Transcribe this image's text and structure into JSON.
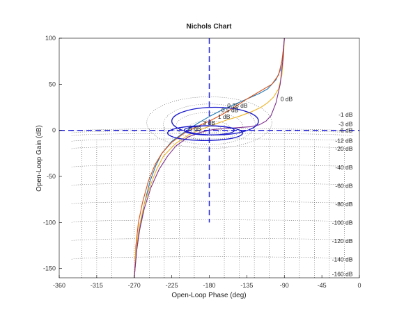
{
  "chart_data": {
    "type": "line",
    "title": "Nichols Chart",
    "xlabel": "Open-Loop Phase (deg)",
    "ylabel": "Open-Loop Gain (dB)",
    "xlim": [
      -360,
      0
    ],
    "ylim": [
      -160,
      100
    ],
    "xticks": [
      -360,
      -315,
      -270,
      -225,
      -180,
      -135,
      -90,
      -45,
      0
    ],
    "yticks": [
      -150,
      -100,
      -50,
      0,
      50,
      100
    ],
    "grid_labels": [
      {
        "text": "0.25 dB",
        "x": -134,
        "y": 27
      },
      {
        "text": "0.5 dB",
        "x": -145,
        "y": 22
      },
      {
        "text": "1 dB",
        "x": -155,
        "y": 15
      },
      {
        "text": "3 dB",
        "x": -173,
        "y": 8
      },
      {
        "text": "6 dB",
        "x": -190,
        "y": 2
      },
      {
        "text": "0 dB",
        "x": -80,
        "y": 34
      },
      {
        "text": "-1 dB",
        "x": -8,
        "y": 17
      },
      {
        "text": "-3 dB",
        "x": -8,
        "y": 7
      },
      {
        "text": "-6 dB",
        "x": -8,
        "y": 0
      },
      {
        "text": "-12 dB",
        "x": -8,
        "y": -11
      },
      {
        "text": "-20 dB",
        "x": -8,
        "y": -20
      },
      {
        "text": "-40 dB",
        "x": -8,
        "y": -40
      },
      {
        "text": "-60 dB",
        "x": -8,
        "y": -60
      },
      {
        "text": "-80 dB",
        "x": -8,
        "y": -80
      },
      {
        "text": "-100 dB",
        "x": -8,
        "y": -100
      },
      {
        "text": "-120 dB",
        "x": -8,
        "y": -120
      },
      {
        "text": "-140 dB",
        "x": -8,
        "y": -140
      },
      {
        "text": "-160 dB",
        "x": -8,
        "y": -156
      }
    ],
    "grid": true,
    "series": [
      {
        "color": "#1f77b4",
        "x": [
          -270,
          -269,
          -267,
          -263,
          -258,
          -251,
          -244,
          -237,
          -225,
          -210,
          -195,
          -180,
          -165,
          -150,
          -135,
          -120,
          -110,
          -100,
          -95,
          -92,
          -90
        ],
        "y": [
          -160,
          -150,
          -130,
          -105,
          -80,
          -55,
          -38,
          -25,
          -12,
          -2,
          7,
          15,
          22,
          28,
          34,
          40,
          45,
          55,
          65,
          80,
          100
        ]
      },
      {
        "color": "#d95319",
        "x": [
          -270,
          -269,
          -268,
          -265,
          -260,
          -253,
          -245,
          -237,
          -225,
          -210,
          -195,
          -180,
          -165,
          -150,
          -135,
          -120,
          -105,
          -97,
          -93,
          -91,
          -90
        ],
        "y": [
          -160,
          -145,
          -125,
          -100,
          -78,
          -55,
          -37,
          -25,
          -13,
          -3,
          4,
          10,
          17,
          25,
          34,
          42,
          50,
          60,
          75,
          90,
          100
        ]
      },
      {
        "color": "#edb120",
        "x": [
          -270,
          -269,
          -268,
          -264,
          -258,
          -250,
          -243,
          -235,
          -220,
          -205,
          -190,
          -175,
          -160,
          -145,
          -130,
          -118,
          -110,
          -103,
          -97,
          -93,
          -91,
          -90
        ],
        "y": [
          -160,
          -150,
          -130,
          -105,
          -80,
          -58,
          -42,
          -28,
          -14,
          -5,
          1,
          6,
          11,
          15,
          20,
          25,
          30,
          36,
          45,
          60,
          80,
          100
        ]
      },
      {
        "color": "#7e2f8e",
        "x": [
          -270,
          -269,
          -267,
          -264,
          -258,
          -250,
          -240,
          -230,
          -220,
          -205,
          -190,
          -175,
          -160,
          -145,
          -130,
          -120,
          -112,
          -106,
          -100,
          -95,
          -92,
          -90
        ],
        "y": [
          -160,
          -150,
          -130,
          -110,
          -85,
          -62,
          -42,
          -28,
          -17,
          -7,
          -2,
          1,
          2,
          3,
          4,
          6,
          10,
          16,
          30,
          50,
          75,
          100
        ]
      }
    ],
    "annotations": {
      "crosshair": {
        "x": -180,
        "y": 0,
        "color": "#2222dd"
      },
      "ellipses": [
        {
          "cx": -173,
          "cy": 10,
          "rx": 52,
          "ry": 15
        },
        {
          "cx": -180,
          "cy": 0,
          "rx": 30,
          "ry": 5
        },
        {
          "cx": -185,
          "cy": -3,
          "rx": 45,
          "ry": 8
        }
      ]
    }
  }
}
